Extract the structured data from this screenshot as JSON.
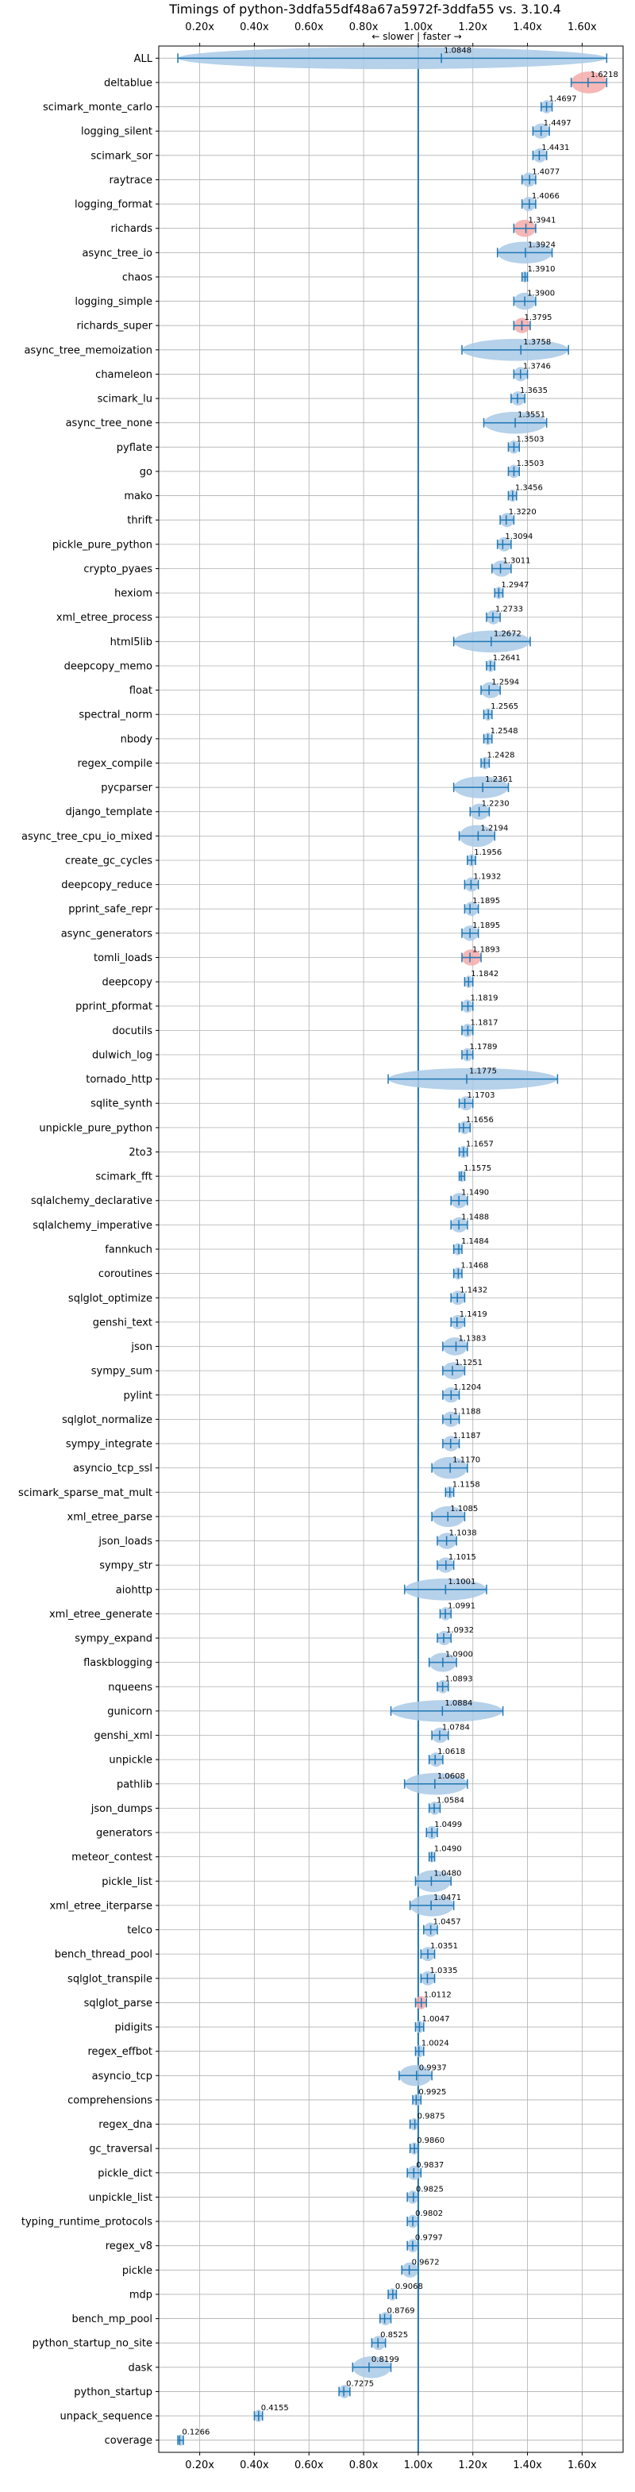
{
  "chart_data": {
    "type": "violin",
    "title": "Timings of python-3ddfa55df48a67a5972f-3ddfa55 vs. 3.10.4",
    "annotation": "← slower | faster →",
    "xlim": [
      0.05,
      1.75
    ],
    "xticks": [
      0.2,
      0.4,
      0.6,
      0.8,
      1.0,
      1.2,
      1.4,
      1.6
    ],
    "xtick_labels": [
      "0.20x",
      "0.40x",
      "0.60x",
      "0.80x",
      "1.00x",
      "1.20x",
      "1.40x",
      "1.60x"
    ],
    "reference_line": 1.0,
    "grid": true,
    "colors": {
      "normal": "#a9c9e6",
      "highlight": "#f4aaaa",
      "line": "#1f77b4"
    },
    "categories": [
      "ALL",
      "deltablue",
      "scimark_monte_carlo",
      "logging_silent",
      "scimark_sor",
      "raytrace",
      "logging_format",
      "richards",
      "async_tree_io",
      "chaos",
      "logging_simple",
      "richards_super",
      "async_tree_memoization",
      "chameleon",
      "scimark_lu",
      "async_tree_none",
      "pyflate",
      "go",
      "mako",
      "thrift",
      "pickle_pure_python",
      "crypto_pyaes",
      "hexiom",
      "xml_etree_process",
      "html5lib",
      "deepcopy_memo",
      "float",
      "spectral_norm",
      "nbody",
      "regex_compile",
      "pycparser",
      "django_template",
      "async_tree_cpu_io_mixed",
      "create_gc_cycles",
      "deepcopy_reduce",
      "pprint_safe_repr",
      "async_generators",
      "tomli_loads",
      "deepcopy",
      "pprint_pformat",
      "docutils",
      "dulwich_log",
      "tornado_http",
      "sqlite_synth",
      "unpickle_pure_python",
      "2to3",
      "scimark_fft",
      "sqlalchemy_declarative",
      "sqlalchemy_imperative",
      "fannkuch",
      "coroutines",
      "sqlglot_optimize",
      "genshi_text",
      "json",
      "sympy_sum",
      "pylint",
      "sqlglot_normalize",
      "sympy_integrate",
      "asyncio_tcp_ssl",
      "scimark_sparse_mat_mult",
      "xml_etree_parse",
      "json_loads",
      "sympy_str",
      "aiohttp",
      "xml_etree_generate",
      "sympy_expand",
      "flaskblogging",
      "nqueens",
      "gunicorn",
      "genshi_xml",
      "unpickle",
      "pathlib",
      "json_dumps",
      "generators",
      "meteor_contest",
      "pickle_list",
      "xml_etree_iterparse",
      "telco",
      "bench_thread_pool",
      "sqlglot_transpile",
      "sqlglot_parse",
      "pidigits",
      "regex_effbot",
      "asyncio_tcp",
      "comprehensions",
      "regex_dna",
      "gc_traversal",
      "pickle_dict",
      "unpickle_list",
      "typing_runtime_protocols",
      "regex_v8",
      "pickle",
      "mdp",
      "bench_mp_pool",
      "python_startup_no_site",
      "dask",
      "python_startup",
      "unpack_sequence",
      "coverage"
    ],
    "values": [
      1.0848,
      1.6218,
      1.4697,
      1.4497,
      1.4431,
      1.4077,
      1.4066,
      1.3941,
      1.3924,
      1.391,
      1.39,
      1.3795,
      1.3758,
      1.3746,
      1.3635,
      1.3551,
      1.3503,
      1.3503,
      1.3456,
      1.322,
      1.3094,
      1.3011,
      1.2947,
      1.2733,
      1.2672,
      1.2641,
      1.2594,
      1.2565,
      1.2548,
      1.2428,
      1.2361,
      1.223,
      1.2194,
      1.1956,
      1.1932,
      1.1895,
      1.1895,
      1.1893,
      1.1842,
      1.1819,
      1.1817,
      1.1789,
      1.1775,
      1.1703,
      1.1656,
      1.1657,
      1.1575,
      1.149,
      1.1488,
      1.1484,
      1.1468,
      1.1432,
      1.1419,
      1.1383,
      1.1251,
      1.1204,
      1.1188,
      1.1187,
      1.117,
      1.1158,
      1.1085,
      1.1038,
      1.1015,
      1.1001,
      1.0991,
      1.0932,
      1.09,
      1.0893,
      1.0884,
      1.0784,
      1.0618,
      1.0608,
      1.0584,
      1.0499,
      1.049,
      1.048,
      1.0471,
      1.0457,
      1.0351,
      1.0335,
      1.0112,
      1.0047,
      1.0024,
      0.9937,
      0.9925,
      0.9875,
      0.986,
      0.9837,
      0.9825,
      0.9802,
      0.9797,
      0.9672,
      0.9068,
      0.8769,
      0.8525,
      0.8199,
      0.7275,
      0.4155,
      0.1266
    ],
    "value_labels": [
      "1.0848",
      "1.6218",
      "1.4697",
      "1.4497",
      "1.4431",
      "1.4077",
      "1.4066",
      "1.3941",
      "1.3924",
      "1.3910",
      "1.3900",
      "1.3795",
      "1.3758",
      "1.3746",
      "1.3635",
      "1.3551",
      "1.3503",
      "1.3503",
      "1.3456",
      "1.3220",
      "1.3094",
      "1.3011",
      "1.2947",
      "1.2733",
      "1.2672",
      "1.2641",
      "1.2594",
      "1.2565",
      "1.2548",
      "1.2428",
      "1.2361",
      "1.2230",
      "1.2194",
      "1.1956",
      "1.1932",
      "1.1895",
      "1.1895",
      "1.1893",
      "1.1842",
      "1.1819",
      "1.1817",
      "1.1789",
      "1.1775",
      "1.1703",
      "1.1656",
      "1.1657",
      "1.1575",
      "1.1490",
      "1.1488",
      "1.1484",
      "1.1468",
      "1.1432",
      "1.1419",
      "1.1383",
      "1.1251",
      "1.1204",
      "1.1188",
      "1.1187",
      "1.1170",
      "1.1158",
      "1.1085",
      "1.1038",
      "1.1015",
      "1.1001",
      "1.0991",
      "1.0932",
      "1.0900",
      "1.0893",
      "1.0884",
      "1.0784",
      "1.0618",
      "1.0608",
      "1.0584",
      "1.0499",
      "1.0490",
      "1.0480",
      "1.0471",
      "1.0457",
      "1.0351",
      "1.0335",
      "1.0112",
      "1.0047",
      "1.0024",
      "0.9937",
      "0.9925",
      "0.9875",
      "0.9860",
      "0.9837",
      "0.9825",
      "0.9802",
      "0.9797",
      "0.9672",
      "0.9068",
      "0.8769",
      "0.8525",
      "0.8199",
      "0.7275",
      "0.4155",
      "0.1266"
    ],
    "ranges": [
      [
        0.12,
        1.69
      ],
      [
        1.56,
        1.69
      ],
      [
        1.45,
        1.49
      ],
      [
        1.42,
        1.48
      ],
      [
        1.42,
        1.47
      ],
      [
        1.38,
        1.43
      ],
      [
        1.38,
        1.43
      ],
      [
        1.35,
        1.43
      ],
      [
        1.29,
        1.49
      ],
      [
        1.38,
        1.4
      ],
      [
        1.35,
        1.43
      ],
      [
        1.35,
        1.41
      ],
      [
        1.16,
        1.55
      ],
      [
        1.35,
        1.4
      ],
      [
        1.34,
        1.39
      ],
      [
        1.24,
        1.47
      ],
      [
        1.33,
        1.37
      ],
      [
        1.33,
        1.37
      ],
      [
        1.33,
        1.36
      ],
      [
        1.3,
        1.35
      ],
      [
        1.29,
        1.34
      ],
      [
        1.27,
        1.34
      ],
      [
        1.28,
        1.31
      ],
      [
        1.25,
        1.3
      ],
      [
        1.13,
        1.41
      ],
      [
        1.25,
        1.28
      ],
      [
        1.23,
        1.3
      ],
      [
        1.24,
        1.27
      ],
      [
        1.24,
        1.27
      ],
      [
        1.23,
        1.26
      ],
      [
        1.13,
        1.33
      ],
      [
        1.19,
        1.26
      ],
      [
        1.15,
        1.28
      ],
      [
        1.18,
        1.21
      ],
      [
        1.17,
        1.22
      ],
      [
        1.17,
        1.22
      ],
      [
        1.16,
        1.22
      ],
      [
        1.16,
        1.23
      ],
      [
        1.17,
        1.2
      ],
      [
        1.16,
        1.2
      ],
      [
        1.16,
        1.2
      ],
      [
        1.16,
        1.2
      ],
      [
        0.89,
        1.51
      ],
      [
        1.15,
        1.2
      ],
      [
        1.15,
        1.19
      ],
      [
        1.15,
        1.18
      ],
      [
        1.15,
        1.17
      ],
      [
        1.12,
        1.18
      ],
      [
        1.12,
        1.18
      ],
      [
        1.13,
        1.16
      ],
      [
        1.13,
        1.16
      ],
      [
        1.12,
        1.17
      ],
      [
        1.12,
        1.17
      ],
      [
        1.09,
        1.18
      ],
      [
        1.09,
        1.17
      ],
      [
        1.09,
        1.15
      ],
      [
        1.09,
        1.15
      ],
      [
        1.09,
        1.15
      ],
      [
        1.05,
        1.18
      ],
      [
        1.1,
        1.13
      ],
      [
        1.05,
        1.17
      ],
      [
        1.07,
        1.14
      ],
      [
        1.07,
        1.13
      ],
      [
        0.95,
        1.25
      ],
      [
        1.08,
        1.12
      ],
      [
        1.07,
        1.12
      ],
      [
        1.04,
        1.14
      ],
      [
        1.07,
        1.11
      ],
      [
        0.9,
        1.31
      ],
      [
        1.05,
        1.11
      ],
      [
        1.04,
        1.09
      ],
      [
        0.95,
        1.18
      ],
      [
        1.04,
        1.08
      ],
      [
        1.03,
        1.07
      ],
      [
        1.04,
        1.06
      ],
      [
        0.99,
        1.12
      ],
      [
        0.97,
        1.13
      ],
      [
        1.02,
        1.07
      ],
      [
        1.01,
        1.06
      ],
      [
        1.01,
        1.06
      ],
      [
        0.99,
        1.03
      ],
      [
        0.99,
        1.02
      ],
      [
        0.99,
        1.02
      ],
      [
        0.93,
        1.05
      ],
      [
        0.98,
        1.01
      ],
      [
        0.97,
        1.0
      ],
      [
        0.97,
        1.0
      ],
      [
        0.96,
        1.01
      ],
      [
        0.96,
        1.0
      ],
      [
        0.96,
        1.0
      ],
      [
        0.96,
        1.0
      ],
      [
        0.94,
        1.0
      ],
      [
        0.89,
        0.92
      ],
      [
        0.86,
        0.9
      ],
      [
        0.83,
        0.88
      ],
      [
        0.76,
        0.9
      ],
      [
        0.71,
        0.75
      ],
      [
        0.4,
        0.43
      ],
      [
        0.12,
        0.14
      ]
    ],
    "highlight": [
      "deltablue",
      "richards",
      "richards_super",
      "tomli_loads",
      "sqlglot_parse"
    ]
  }
}
